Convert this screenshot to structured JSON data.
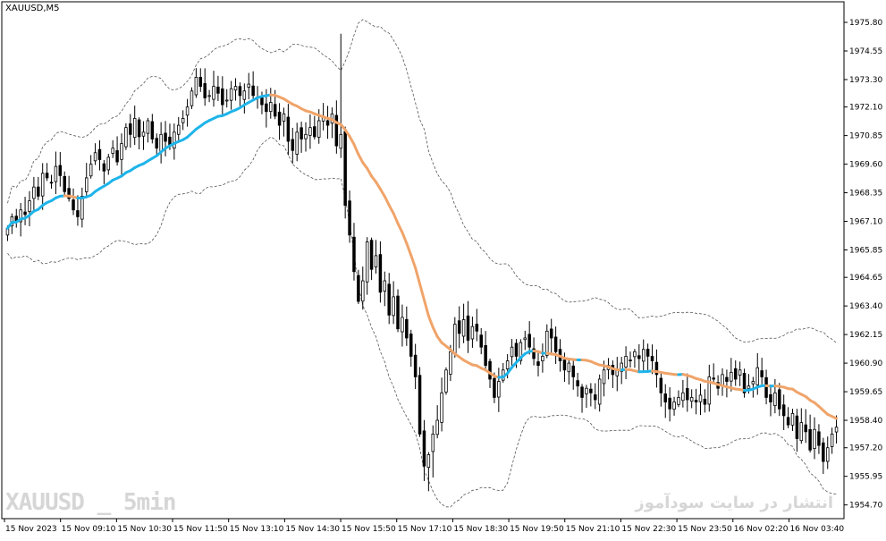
{
  "window": {
    "symbol_label": "XAUUSD,M5"
  },
  "watermarks": {
    "left": "XAUUSD _ 5min",
    "right": "انتشار در سایت سودآموز"
  },
  "colors": {
    "background": "#ffffff",
    "candle": "#000000",
    "ma_up": "#1eb4ea",
    "ma_down": "#f0a46a",
    "envelope": "#555555",
    "axis": "#000000"
  },
  "chart_data": {
    "type": "candlestick",
    "title": "XAUUSD,M5",
    "ylim": [
      1954.1,
      1976.7
    ],
    "y_ticks": [
      1975.8,
      1974.55,
      1973.3,
      1972.1,
      1970.85,
      1969.6,
      1968.35,
      1967.1,
      1965.85,
      1964.65,
      1963.4,
      1962.15,
      1960.9,
      1959.65,
      1958.4,
      1957.2,
      1955.95,
      1954.7
    ],
    "x_ticks": [
      "15 Nov 2023",
      "15 Nov 09:10",
      "15 Nov 10:30",
      "15 Nov 11:50",
      "15 Nov 13:10",
      "15 Nov 14:30",
      "15 Nov 15:50",
      "15 Nov 17:10",
      "15 Nov 18:30",
      "15 Nov 19:50",
      "15 Nov 21:10",
      "15 Nov 22:30",
      "15 Nov 23:50",
      "16 Nov 02:20",
      "16 Nov 03:40"
    ],
    "close": [
      1966.8,
      1967.3,
      1967.1,
      1967.6,
      1967.4,
      1968.0,
      1968.6,
      1968.2,
      1969.2,
      1969.0,
      1968.8,
      1969.5,
      1969.1,
      1968.4,
      1968.1,
      1967.6,
      1967.3,
      1968.2,
      1969.0,
      1969.6,
      1970.1,
      1969.8,
      1969.3,
      1969.9,
      1970.3,
      1969.7,
      1970.5,
      1971.2,
      1970.9,
      1971.6,
      1970.8,
      1971.0,
      1971.5,
      1970.7,
      1970.3,
      1970.9,
      1970.6,
      1970.4,
      1971.0,
      1971.3,
      1971.6,
      1972.1,
      1972.8,
      1973.4,
      1973.0,
      1972.5,
      1972.6,
      1973.0,
      1972.7,
      1972.2,
      1972.4,
      1972.9,
      1973.0,
      1972.6,
      1972.8,
      1973.1,
      1972.6,
      1972.5,
      1972.2,
      1971.9,
      1972.3,
      1971.7,
      1971.3,
      1971.8,
      1970.6,
      1970.2,
      1971.0,
      1970.7,
      1970.9,
      1971.2,
      1970.8,
      1971.5,
      1971.7,
      1971.3,
      1971.8,
      1970.4,
      1970.9,
      1967.8,
      1966.5,
      1964.9,
      1963.6,
      1964.5,
      1966.2,
      1965.0,
      1965.6,
      1964.0,
      1964.5,
      1963.0,
      1963.8,
      1962.4,
      1962.9,
      1962.0,
      1961.2,
      1960.3,
      1957.8,
      1956.4,
      1956.9,
      1957.8,
      1958.4,
      1959.6,
      1960.6,
      1961.4,
      1962.6,
      1962.2,
      1962.8,
      1961.9,
      1962.5,
      1962.3,
      1961.6,
      1960.8,
      1960.2,
      1959.4,
      1960.1,
      1960.6,
      1961.0,
      1961.6,
      1961.2,
      1961.8,
      1962.0,
      1961.6,
      1961.1,
      1960.8,
      1961.2,
      1962.3,
      1962.0,
      1961.4,
      1961.0,
      1960.6,
      1960.9,
      1960.3,
      1959.9,
      1959.4,
      1959.8,
      1959.6,
      1959.3,
      1960.2,
      1960.6,
      1960.8,
      1960.4,
      1960.6,
      1960.9,
      1961.2,
      1961.0,
      1961.4,
      1961.1,
      1961.5,
      1961.2,
      1961.0,
      1960.4,
      1959.6,
      1959.2,
      1958.9,
      1959.2,
      1959.4,
      1959.6,
      1959.3,
      1959.4,
      1959.2,
      1959.5,
      1959.1,
      1960.3,
      1960.2,
      1959.8,
      1960.4,
      1960.1,
      1960.5,
      1960.2,
      1960.6,
      1959.6,
      1959.9,
      1960.1,
      1960.7,
      1960.3,
      1959.4,
      1959.2,
      1959.6,
      1958.9,
      1958.6,
      1958.2,
      1958.7,
      1957.6,
      1958.3,
      1957.9,
      1957.1,
      1958.0,
      1957.3,
      1956.6,
      1957.2,
      1957.8,
      1958.1
    ]
  }
}
